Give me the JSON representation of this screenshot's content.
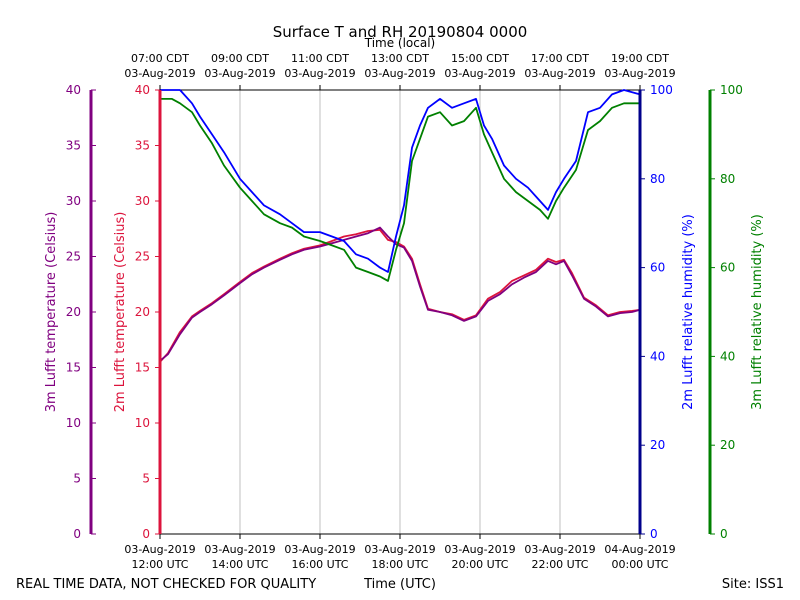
{
  "chart_data": {
    "type": "line",
    "title": "Surface T and RH 20190804 0000",
    "top_axis_label": "Time (local)",
    "top_ticks": [
      {
        "time": "07:00 CDT",
        "date": "03-Aug-2019"
      },
      {
        "time": "09:00 CDT",
        "date": "03-Aug-2019"
      },
      {
        "time": "11:00 CDT",
        "date": "03-Aug-2019"
      },
      {
        "time": "13:00 CDT",
        "date": "03-Aug-2019"
      },
      {
        "time": "15:00 CDT",
        "date": "03-Aug-2019"
      },
      {
        "time": "17:00 CDT",
        "date": "03-Aug-2019"
      },
      {
        "time": "19:00 CDT",
        "date": "03-Aug-2019"
      }
    ],
    "bottom_ticks": [
      {
        "date": "03-Aug-2019",
        "time": "12:00 UTC"
      },
      {
        "date": "03-Aug-2019",
        "time": "14:00 UTC"
      },
      {
        "date": "03-Aug-2019",
        "time": "16:00 UTC"
      },
      {
        "date": "03-Aug-2019",
        "time": "18:00 UTC"
      },
      {
        "date": "03-Aug-2019",
        "time": "20:00 UTC"
      },
      {
        "date": "03-Aug-2019",
        "time": "22:00 UTC"
      },
      {
        "date": "04-Aug-2019",
        "time": "00:00 UTC"
      }
    ],
    "xlabel": "Time (UTC)",
    "xlim_hours_utc": [
      12,
      24
    ],
    "footer_left": "REAL TIME DATA, NOT CHECKED FOR QUALITY",
    "footer_right": "Site: ISS1",
    "temp_ylim": [
      0,
      40
    ],
    "temp_ticks": [
      "0",
      "5",
      "10",
      "15",
      "20",
      "25",
      "30",
      "35",
      "40"
    ],
    "rh_ylim": [
      0,
      100
    ],
    "rh_ticks": [
      "0",
      "20",
      "40",
      "60",
      "80",
      "100"
    ],
    "axes": {
      "t3m": {
        "label": "3m Lufft temperature (Celsius)",
        "color": "#800080"
      },
      "t2m": {
        "label": "2m Lufft temperature (Celsius)",
        "color": "#dc143c"
      },
      "rh2m": {
        "label": "2m Lufft relative humidity (%)",
        "color": "#0000ff",
        "axis_color": "#00008b"
      },
      "rh3m": {
        "label": "3m Lufft relative humidity (%)",
        "color": "#008000"
      }
    },
    "series": [
      {
        "name": "2m Lufft temperature",
        "axis": "temp",
        "color": "#dc143c",
        "x": [
          12,
          12.2,
          12.5,
          12.8,
          13,
          13.3,
          13.6,
          14,
          14.3,
          14.6,
          15,
          15.3,
          15.6,
          16,
          16.3,
          16.6,
          16.9,
          17.2,
          17.5,
          17.7,
          17.9,
          18.1,
          18.3,
          18.5,
          18.7,
          19,
          19.3,
          19.6,
          19.9,
          20.2,
          20.5,
          20.8,
          21.1,
          21.4,
          21.7,
          21.9,
          22.1,
          22.3,
          22.6,
          22.9,
          23.2,
          23.5,
          23.8,
          24
        ],
        "y": [
          15.5,
          16.3,
          18.2,
          19.6,
          20.1,
          20.8,
          21.6,
          22.7,
          23.5,
          24.1,
          24.8,
          25.3,
          25.7,
          26.0,
          26.4,
          26.8,
          27.0,
          27.3,
          27.4,
          26.5,
          26.3,
          25.9,
          24.8,
          22.5,
          20.3,
          20.0,
          19.8,
          19.3,
          19.7,
          21.2,
          21.8,
          22.8,
          23.3,
          23.8,
          24.8,
          24.5,
          24.7,
          23.5,
          21.3,
          20.6,
          19.7,
          20.0,
          20.1,
          20.2
        ]
      },
      {
        "name": "3m Lufft temperature",
        "axis": "temp",
        "color": "#800080",
        "x": [
          12,
          12.2,
          12.5,
          12.8,
          13,
          13.3,
          13.6,
          14,
          14.3,
          14.6,
          15,
          15.3,
          15.6,
          16,
          16.3,
          16.6,
          16.9,
          17.2,
          17.5,
          17.7,
          17.9,
          18.1,
          18.3,
          18.5,
          18.7,
          19,
          19.3,
          19.6,
          19.9,
          20.2,
          20.5,
          20.8,
          21.1,
          21.4,
          21.7,
          21.9,
          22.1,
          22.3,
          22.6,
          22.9,
          23.2,
          23.5,
          23.8,
          24
        ],
        "y": [
          15.6,
          16.2,
          18.0,
          19.5,
          20.0,
          20.7,
          21.5,
          22.6,
          23.4,
          24.0,
          24.7,
          25.2,
          25.6,
          25.9,
          26.2,
          26.5,
          26.8,
          27.1,
          27.6,
          26.8,
          26.1,
          25.8,
          24.6,
          22.3,
          20.2,
          20.0,
          19.7,
          19.2,
          19.6,
          21.0,
          21.6,
          22.5,
          23.1,
          23.6,
          24.6,
          24.3,
          24.6,
          23.3,
          21.2,
          20.5,
          19.6,
          19.9,
          20.0,
          20.2
        ]
      },
      {
        "name": "2m Lufft relative humidity",
        "axis": "rh",
        "color": "#0000ff",
        "x": [
          12,
          12.3,
          12.5,
          12.8,
          13,
          13.3,
          13.6,
          14,
          14.3,
          14.6,
          15,
          15.3,
          15.6,
          16,
          16.3,
          16.6,
          16.9,
          17.2,
          17.5,
          17.7,
          17.9,
          18.1,
          18.3,
          18.5,
          18.7,
          19,
          19.3,
          19.6,
          19.9,
          20.1,
          20.3,
          20.6,
          20.9,
          21.2,
          21.5,
          21.7,
          21.9,
          22.1,
          22.4,
          22.7,
          23,
          23.3,
          23.6,
          24
        ],
        "y": [
          100,
          100,
          100,
          97,
          94,
          90,
          86,
          80,
          77,
          74,
          72,
          70,
          68,
          68,
          67,
          66,
          63,
          62,
          60,
          59,
          67,
          74,
          87,
          92,
          96,
          98,
          96,
          97,
          98,
          92,
          89,
          83,
          80,
          78,
          75,
          73,
          77,
          80,
          84,
          95,
          96,
          99,
          100,
          99
        ]
      },
      {
        "name": "3m Lufft relative humidity",
        "axis": "rh",
        "color": "#008000",
        "x": [
          12,
          12.3,
          12.5,
          12.8,
          13,
          13.3,
          13.6,
          14,
          14.3,
          14.6,
          15,
          15.3,
          15.6,
          16,
          16.3,
          16.6,
          16.9,
          17.2,
          17.5,
          17.7,
          17.9,
          18.1,
          18.3,
          18.5,
          18.7,
          19,
          19.3,
          19.6,
          19.9,
          20.1,
          20.3,
          20.6,
          20.9,
          21.2,
          21.5,
          21.7,
          21.9,
          22.1,
          22.4,
          22.7,
          23,
          23.3,
          23.6,
          24
        ],
        "y": [
          98,
          98,
          97,
          95,
          92,
          88,
          83,
          78,
          75,
          72,
          70,
          69,
          67,
          66,
          65,
          64,
          60,
          59,
          58,
          57,
          64,
          70,
          84,
          89,
          94,
          95,
          92,
          93,
          96,
          90,
          86,
          80,
          77,
          75,
          73,
          71,
          75,
          78,
          82,
          91,
          93,
          96,
          97,
          97
        ]
      }
    ]
  }
}
